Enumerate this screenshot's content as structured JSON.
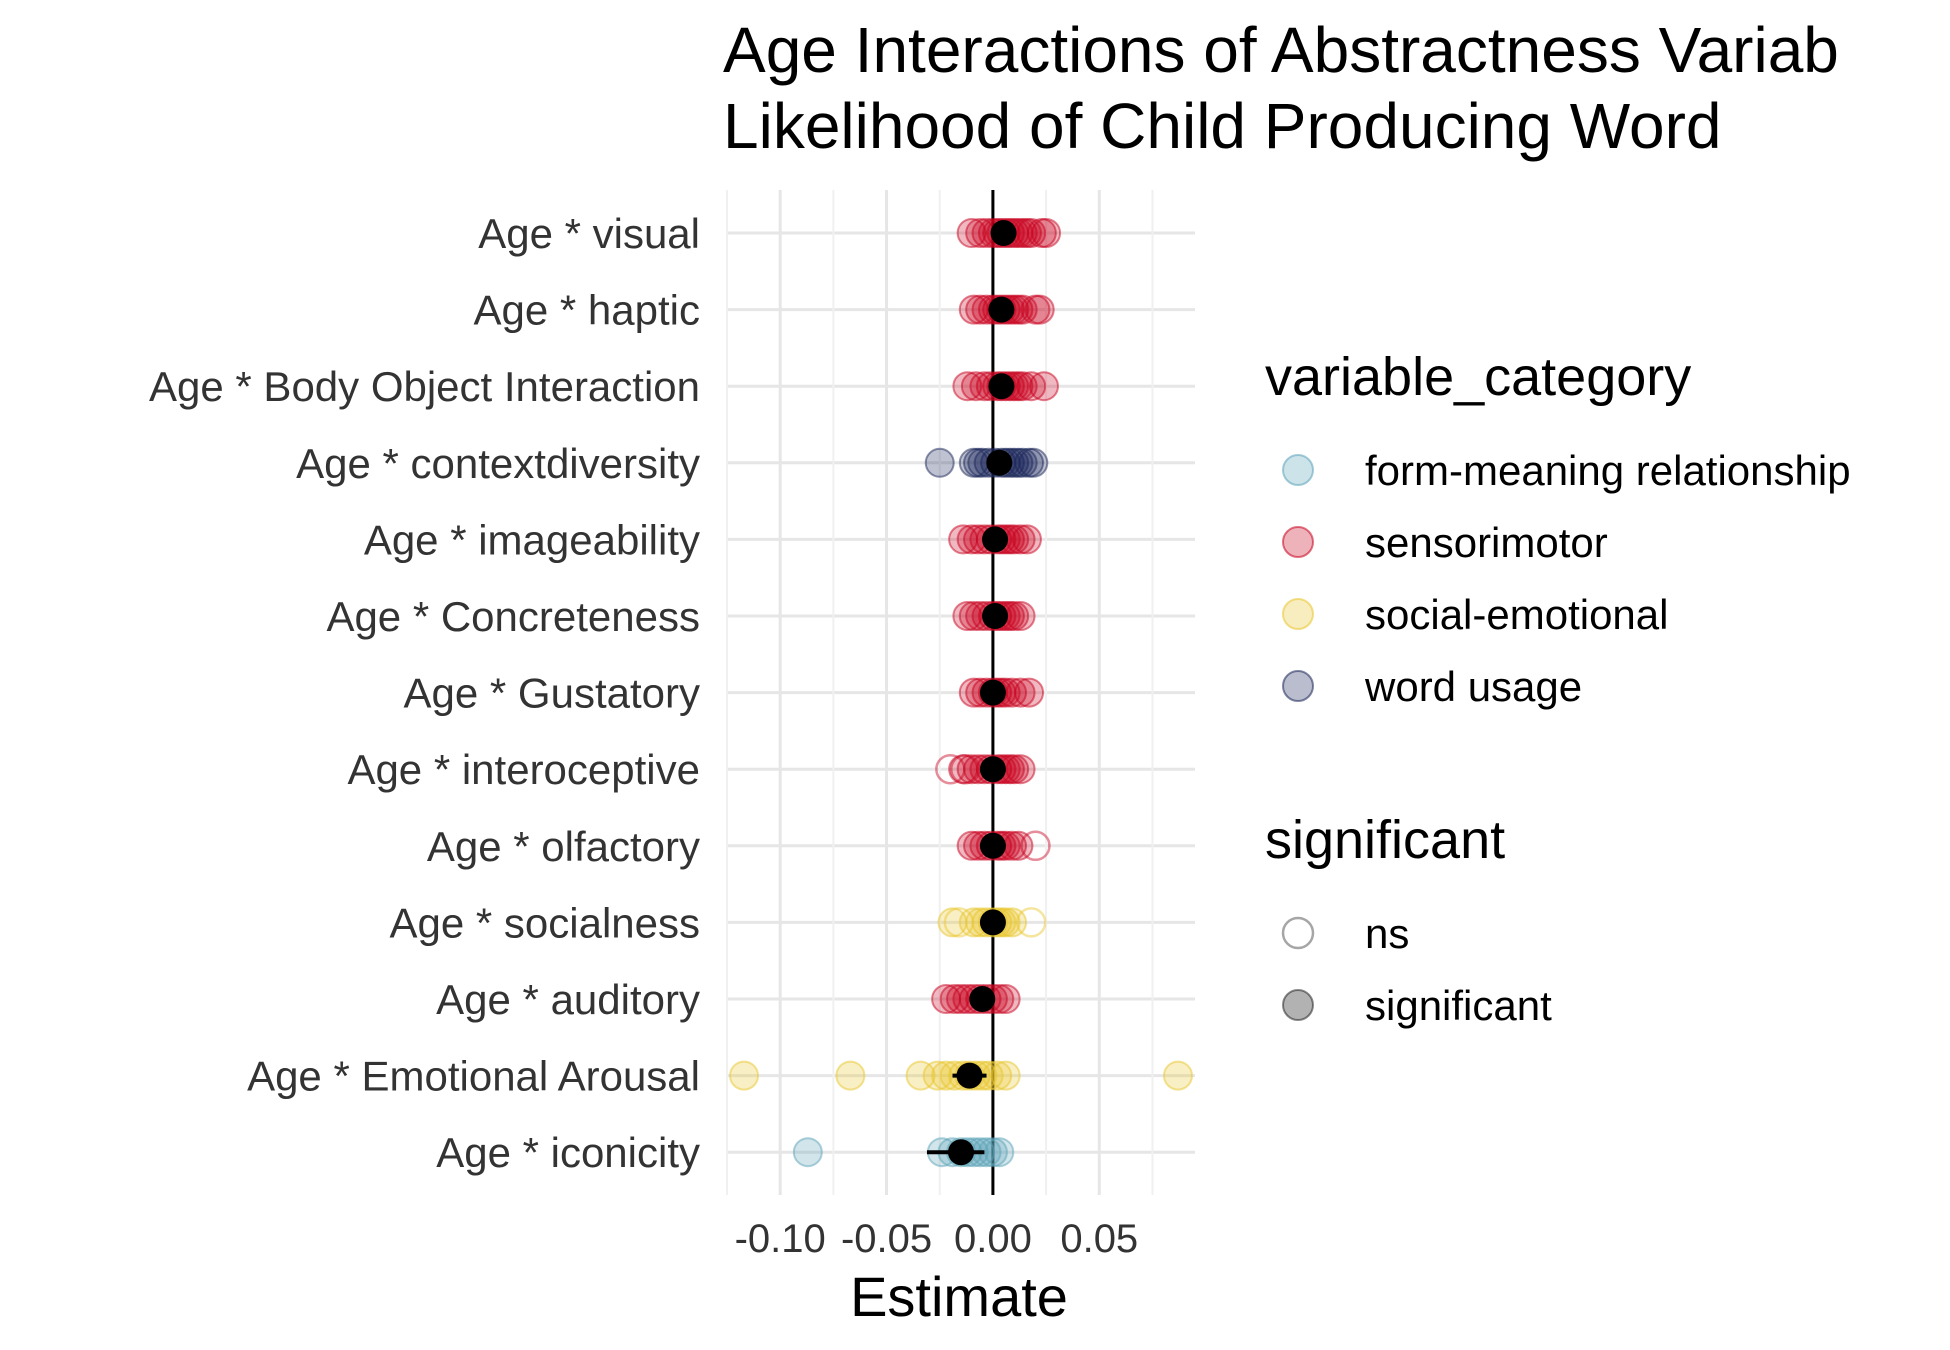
{
  "chart_data": {
    "type": "scatter",
    "title_lines": [
      "Age Interactions of Abstractness Variab",
      "Likelihood of Child Producing Word"
    ],
    "xlabel": "Estimate",
    "ylabel": "",
    "xlim": [
      -0.125,
      0.095
    ],
    "x_ticks": [
      -0.1,
      -0.05,
      0.0,
      0.05
    ],
    "x_tick_labels": [
      "-0.10",
      "-0.05",
      "0.00",
      "0.05"
    ],
    "grid": true,
    "zero_line": 0.0,
    "categories": [
      "Age * visual",
      "Age * haptic",
      "Age * Body Object Interaction",
      "Age * contextdiversity",
      "Age * imageability",
      "Age * Concreteness",
      "Age * Gustatory",
      "Age * interoceptive",
      "Age * olfactory",
      "Age * socialness",
      "Age * auditory",
      "Age * Emotional Arousal",
      "Age * iconicity"
    ],
    "colors": {
      "form-meaning relationship": "#5ba3b8",
      "sensorimotor": "#c8001e",
      "social-emotional": "#e8c52a",
      "word usage": "#1a2558"
    },
    "legend": {
      "position": "right",
      "variable_category": {
        "title": "variable_category",
        "entries": [
          "form-meaning relationship",
          "sensorimotor",
          "social-emotional",
          "word usage"
        ]
      },
      "significant": {
        "title": "significant",
        "entries": [
          "ns",
          "significant"
        ]
      }
    },
    "series": [
      {
        "term": "Age * visual",
        "category": "sensorimotor",
        "mean": 0.005,
        "ci": [
          0.002,
          0.008
        ],
        "sig": [
          -0.01,
          -0.006,
          -0.003,
          0.0,
          0.002,
          0.004,
          0.006,
          0.008,
          0.01,
          0.012,
          0.014,
          0.016,
          0.018,
          0.023,
          0.025
        ],
        "ns": []
      },
      {
        "term": "Age * haptic",
        "category": "sensorimotor",
        "mean": 0.004,
        "ci": [
          0.001,
          0.007
        ],
        "sig": [
          -0.009,
          -0.006,
          -0.003,
          0.0,
          0.002,
          0.004,
          0.006,
          0.008,
          0.01,
          0.012,
          0.014,
          0.02,
          0.022
        ],
        "ns": []
      },
      {
        "term": "Age * Body Object Interaction",
        "category": "sensorimotor",
        "mean": 0.004,
        "ci": [
          0.001,
          0.007
        ],
        "sig": [
          -0.012,
          -0.008,
          -0.004,
          -0.001,
          0.002,
          0.004,
          0.006,
          0.008,
          0.01,
          0.012,
          0.014,
          0.018,
          0.024
        ],
        "ns": []
      },
      {
        "term": "Age * contextdiversity",
        "category": "word usage",
        "mean": 0.003,
        "ci": [
          0.0,
          0.006
        ],
        "sig": [
          -0.025,
          -0.009,
          -0.007,
          -0.005,
          -0.002,
          0.001,
          0.004,
          0.006,
          0.008,
          0.01,
          0.012,
          0.014,
          0.017,
          0.019
        ],
        "ns": []
      },
      {
        "term": "Age * imageability",
        "category": "sensorimotor",
        "mean": 0.001,
        "ci": [
          -0.002,
          0.004
        ],
        "sig": [
          -0.014,
          -0.01,
          -0.007,
          -0.004,
          -0.001,
          0.002,
          0.004,
          0.006,
          0.008,
          0.01,
          0.013,
          0.016
        ],
        "ns": []
      },
      {
        "term": "Age * Concreteness",
        "category": "sensorimotor",
        "mean": 0.001,
        "ci": [
          -0.002,
          0.004
        ],
        "sig": [
          -0.012,
          -0.009,
          -0.006,
          -0.003,
          0.0,
          0.002,
          0.004,
          0.006,
          0.008,
          0.01,
          0.013
        ],
        "ns": []
      },
      {
        "term": "Age * Gustatory",
        "category": "sensorimotor",
        "mean": 0.0,
        "ci": [
          -0.003,
          0.003
        ],
        "sig": [
          -0.009,
          -0.006,
          -0.003,
          0.0,
          0.002,
          0.004,
          0.006,
          0.009,
          0.013,
          0.017
        ],
        "ns": []
      },
      {
        "term": "Age * interoceptive",
        "category": "sensorimotor",
        "mean": 0.0,
        "ci": [
          -0.003,
          0.003
        ],
        "sig": [
          -0.014,
          -0.01,
          -0.007,
          -0.004,
          -0.001,
          0.002,
          0.004,
          0.006,
          0.008,
          0.01,
          0.013
        ],
        "ns": [
          -0.02,
          -0.013
        ]
      },
      {
        "term": "Age * olfactory",
        "category": "sensorimotor",
        "mean": 0.0,
        "ci": [
          -0.003,
          0.003
        ],
        "sig": [
          -0.01,
          -0.007,
          -0.004,
          -0.001,
          0.002,
          0.004,
          0.006,
          0.009,
          0.012
        ],
        "ns": [
          0.02
        ]
      },
      {
        "term": "Age * socialness",
        "category": "social-emotional",
        "mean": 0.0,
        "ci": [
          -0.003,
          0.003
        ],
        "sig": [
          -0.019,
          -0.009,
          -0.006,
          -0.003,
          0.0,
          0.002,
          0.004,
          0.006,
          0.009
        ],
        "ns": [
          -0.016,
          0.018
        ]
      },
      {
        "term": "Age * auditory",
        "category": "sensorimotor",
        "mean": -0.005,
        "ci": [
          -0.008,
          -0.002
        ],
        "sig": [
          -0.022,
          -0.018,
          -0.015,
          -0.012,
          -0.009,
          -0.006,
          -0.003,
          0.0,
          0.003,
          0.006
        ],
        "ns": []
      },
      {
        "term": "Age * Emotional Arousal",
        "category": "social-emotional",
        "mean": -0.011,
        "ci": [
          -0.019,
          -0.003
        ],
        "sig": [
          -0.117,
          -0.067,
          -0.034,
          -0.026,
          -0.022,
          -0.018,
          -0.014,
          -0.011,
          -0.008,
          -0.005,
          -0.002,
          0.002,
          0.006,
          0.087
        ],
        "ns": []
      },
      {
        "term": "Age * iconicity",
        "category": "form-meaning relationship",
        "mean": -0.015,
        "ci": [
          -0.031,
          -0.004
        ],
        "sig": [
          -0.087,
          -0.024,
          -0.019,
          -0.015,
          -0.012,
          -0.009,
          -0.006,
          -0.003,
          0.0,
          0.003
        ],
        "ns": []
      }
    ]
  }
}
